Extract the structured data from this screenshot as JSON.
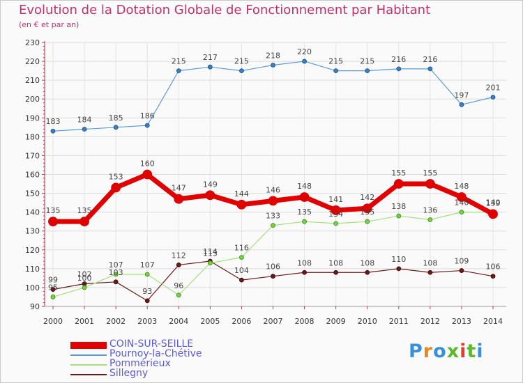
{
  "header": {
    "title": "Evolution de la Dotation Globale de Fonctionnement par Habitant",
    "subtitle": "(en € et par an)"
  },
  "brand": {
    "text": "Proxiti",
    "colors": [
      "#3a8fd9",
      "#e8861e",
      "#3a8fd9",
      "#5cb82e",
      "#e0402a",
      "#5cb82e",
      "#3a8fd9"
    ]
  },
  "chart_data": {
    "type": "line",
    "title": "Evolution de la Dotation Globale de Fonctionnement par Habitant",
    "subtitle": "(en € et par an)",
    "xlabel": "",
    "ylabel": "",
    "ylim": [
      90,
      230
    ],
    "yticks": [
      90,
      100,
      110,
      120,
      130,
      140,
      150,
      160,
      170,
      180,
      190,
      200,
      210,
      220,
      230
    ],
    "grid": true,
    "legend_position": "bottom-left",
    "categories": [
      "2000",
      "2001",
      "2002",
      "2003",
      "2004",
      "2005",
      "2006",
      "2007",
      "2008",
      "2009",
      "2010",
      "2011",
      "2012",
      "2013",
      "2014"
    ],
    "series": [
      {
        "name": "COIN-SUR-SEILLE",
        "color": "#e00000",
        "values": [
          135,
          135,
          153,
          160,
          147,
          149,
          144,
          146,
          148,
          141,
          142,
          155,
          155,
          148,
          139
        ]
      },
      {
        "name": "Pournoy-la-Chétive",
        "color": "#5b9bd5",
        "values": [
          183,
          184,
          185,
          186,
          215,
          217,
          215,
          218,
          220,
          215,
          215,
          216,
          216,
          197,
          201
        ]
      },
      {
        "name": "Pommérieux",
        "color": "#a3e07a",
        "values": [
          95,
          100,
          107,
          107,
          96,
          113,
          116,
          133,
          135,
          134,
          135,
          138,
          136,
          140,
          140
        ]
      },
      {
        "name": "Sillegny",
        "color": "#6b1a1a",
        "values": [
          99,
          102,
          103,
          93,
          112,
          114,
          104,
          106,
          108,
          108,
          108,
          110,
          108,
          109,
          106
        ]
      }
    ]
  }
}
